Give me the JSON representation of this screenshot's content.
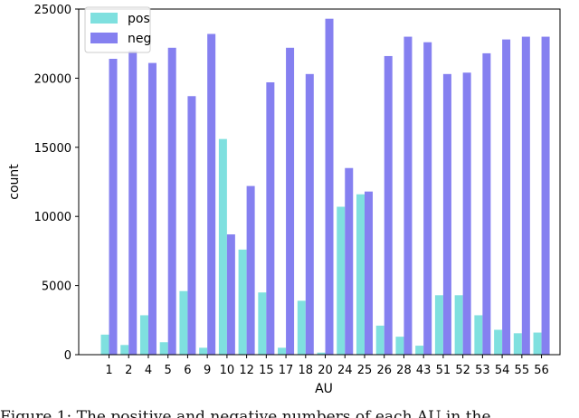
{
  "chart_data": {
    "type": "bar",
    "xlabel": "AU",
    "ylabel": "count",
    "ylim": [
      0,
      25000
    ],
    "yticks": [
      0,
      5000,
      10000,
      15000,
      20000,
      25000
    ],
    "categories": [
      "1",
      "2",
      "4",
      "5",
      "6",
      "9",
      "10",
      "12",
      "15",
      "17",
      "18",
      "20",
      "24",
      "25",
      "26",
      "28",
      "43",
      "51",
      "52",
      "53",
      "54",
      "55",
      "56"
    ],
    "series": [
      {
        "name": "pos",
        "color": "#7fe0df",
        "values": [
          1450,
          700,
          2850,
          900,
          4600,
          500,
          15600,
          7600,
          4500,
          500,
          3900,
          150,
          10700,
          11600,
          2100,
          1300,
          650,
          4300,
          4300,
          2850,
          1800,
          1550,
          1600
        ]
      },
      {
        "name": "neg",
        "color": "#8580f0",
        "values": [
          21400,
          22000,
          21100,
          22200,
          18700,
          23200,
          8700,
          12200,
          19700,
          22200,
          20300,
          24300,
          13500,
          11800,
          21600,
          23000,
          22600,
          20300,
          20400,
          21800,
          22800,
          23000,
          23000
        ]
      }
    ],
    "legend": {
      "position": "top-left"
    },
    "grid": false
  },
  "caption": "Figure 1: The positive and negative numbers of each AU in the"
}
